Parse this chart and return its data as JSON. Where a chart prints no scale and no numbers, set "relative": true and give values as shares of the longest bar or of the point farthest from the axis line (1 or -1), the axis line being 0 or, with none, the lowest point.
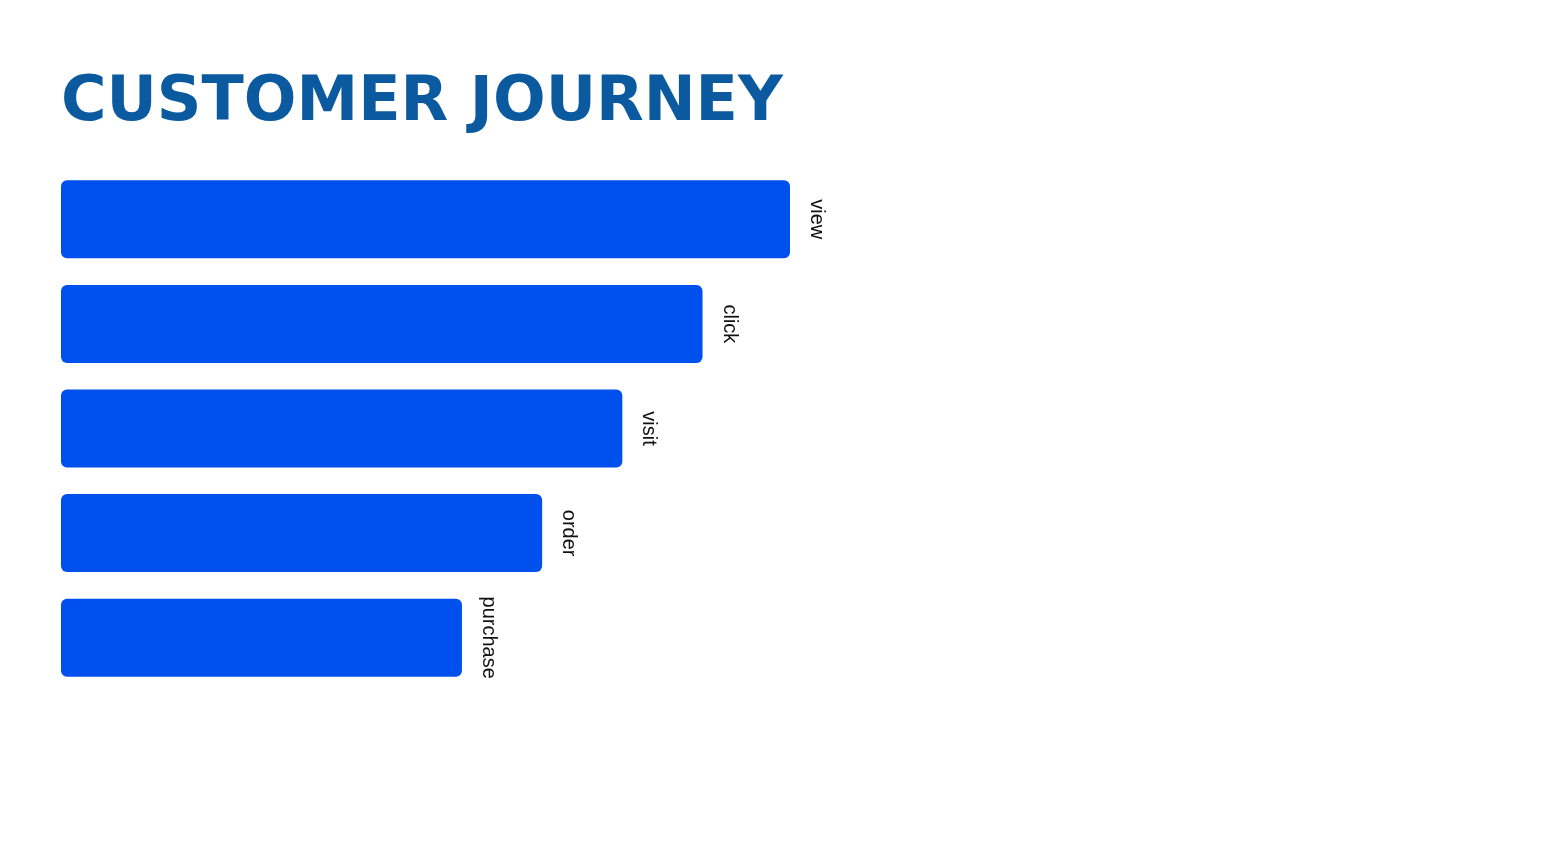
{
  "chart_data": {
    "type": "bar",
    "orientation": "horizontal",
    "relative": true,
    "title": "CUSTOMER JOURNEY",
    "categories": [
      "view",
      "click",
      "visit",
      "order",
      "purchase"
    ],
    "values": [
      1,
      0.88,
      0.77,
      0.66,
      0.55
    ],
    "color": "#0050ee"
  }
}
